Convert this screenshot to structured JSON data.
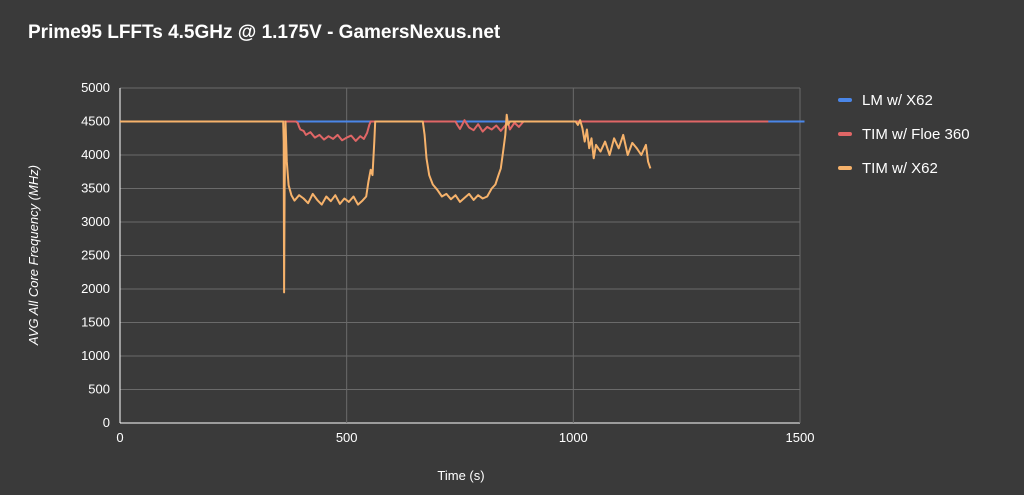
{
  "chart_data": {
    "type": "line",
    "title": "Prime95 LFFTs 4.5GHz @ 1.175V - GamersNexus.net",
    "xlabel": "Time (s)",
    "ylabel": "AVG All Core Frequency (MHz)",
    "xlim": [
      0,
      1500
    ],
    "ylim": [
      0,
      5000
    ],
    "xticks": [
      0,
      500,
      1000,
      1500
    ],
    "yticks": [
      0,
      500,
      1000,
      1500,
      2000,
      2500,
      3000,
      3500,
      4000,
      4500,
      5000
    ],
    "grid": true,
    "legend_position": "right",
    "series": [
      {
        "name": "LM w/ X62",
        "color": "#4a86e8",
        "points": [
          [
            0,
            4500
          ],
          [
            1510,
            4500
          ]
        ]
      },
      {
        "name": "TIM w/ Floe 360",
        "color": "#e06666",
        "points": [
          [
            0,
            4500
          ],
          [
            388,
            4500
          ],
          [
            392,
            4480
          ],
          [
            395,
            4420
          ],
          [
            398,
            4380
          ],
          [
            405,
            4360
          ],
          [
            410,
            4300
          ],
          [
            420,
            4340
          ],
          [
            430,
            4260
          ],
          [
            440,
            4300
          ],
          [
            450,
            4230
          ],
          [
            460,
            4280
          ],
          [
            470,
            4240
          ],
          [
            480,
            4300
          ],
          [
            490,
            4220
          ],
          [
            500,
            4260
          ],
          [
            510,
            4290
          ],
          [
            520,
            4210
          ],
          [
            530,
            4280
          ],
          [
            538,
            4240
          ],
          [
            545,
            4330
          ],
          [
            550,
            4450
          ],
          [
            553,
            4500
          ],
          [
            740,
            4500
          ],
          [
            745,
            4440
          ],
          [
            750,
            4390
          ],
          [
            760,
            4520
          ],
          [
            770,
            4410
          ],
          [
            780,
            4370
          ],
          [
            790,
            4460
          ],
          [
            800,
            4350
          ],
          [
            810,
            4420
          ],
          [
            820,
            4380
          ],
          [
            830,
            4440
          ],
          [
            840,
            4360
          ],
          [
            850,
            4440
          ],
          [
            855,
            4500
          ],
          [
            860,
            4380
          ],
          [
            870,
            4480
          ],
          [
            880,
            4420
          ],
          [
            890,
            4500
          ],
          [
            1040,
            4500
          ],
          [
            1430,
            4500
          ]
        ]
      },
      {
        "name": "TIM w/ X62",
        "color": "#f6b26b",
        "points": [
          [
            0,
            4500
          ],
          [
            360,
            4500
          ],
          [
            361,
            4200
          ],
          [
            362,
            1950
          ],
          [
            363,
            3500
          ],
          [
            365,
            4500
          ],
          [
            368,
            3900
          ],
          [
            372,
            3550
          ],
          [
            378,
            3400
          ],
          [
            385,
            3320
          ],
          [
            395,
            3400
          ],
          [
            405,
            3350
          ],
          [
            415,
            3280
          ],
          [
            425,
            3420
          ],
          [
            435,
            3330
          ],
          [
            445,
            3260
          ],
          [
            455,
            3380
          ],
          [
            465,
            3310
          ],
          [
            475,
            3400
          ],
          [
            485,
            3270
          ],
          [
            495,
            3350
          ],
          [
            505,
            3300
          ],
          [
            515,
            3380
          ],
          [
            525,
            3260
          ],
          [
            535,
            3320
          ],
          [
            543,
            3380
          ],
          [
            548,
            3600
          ],
          [
            553,
            3780
          ],
          [
            557,
            3700
          ],
          [
            561,
            4200
          ],
          [
            563,
            4500
          ],
          [
            668,
            4500
          ],
          [
            672,
            4300
          ],
          [
            676,
            3950
          ],
          [
            682,
            3700
          ],
          [
            690,
            3560
          ],
          [
            700,
            3480
          ],
          [
            710,
            3380
          ],
          [
            720,
            3420
          ],
          [
            730,
            3340
          ],
          [
            740,
            3400
          ],
          [
            750,
            3300
          ],
          [
            760,
            3360
          ],
          [
            770,
            3420
          ],
          [
            780,
            3330
          ],
          [
            790,
            3400
          ],
          [
            800,
            3350
          ],
          [
            810,
            3380
          ],
          [
            820,
            3500
          ],
          [
            828,
            3560
          ],
          [
            835,
            3700
          ],
          [
            840,
            3800
          ],
          [
            845,
            4050
          ],
          [
            850,
            4300
          ],
          [
            853,
            4600
          ],
          [
            856,
            4450
          ],
          [
            860,
            4500
          ],
          [
            1005,
            4500
          ],
          [
            1010,
            4450
          ],
          [
            1015,
            4520
          ],
          [
            1020,
            4400
          ],
          [
            1025,
            4200
          ],
          [
            1030,
            4380
          ],
          [
            1035,
            4100
          ],
          [
            1040,
            4250
          ],
          [
            1045,
            3950
          ],
          [
            1050,
            4150
          ],
          [
            1060,
            4050
          ],
          [
            1070,
            4200
          ],
          [
            1080,
            4000
          ],
          [
            1090,
            4250
          ],
          [
            1100,
            4100
          ],
          [
            1110,
            4300
          ],
          [
            1120,
            4000
          ],
          [
            1130,
            4180
          ],
          [
            1140,
            4100
          ],
          [
            1150,
            4000
          ],
          [
            1160,
            4150
          ],
          [
            1165,
            3900
          ],
          [
            1170,
            3800
          ]
        ]
      }
    ]
  }
}
